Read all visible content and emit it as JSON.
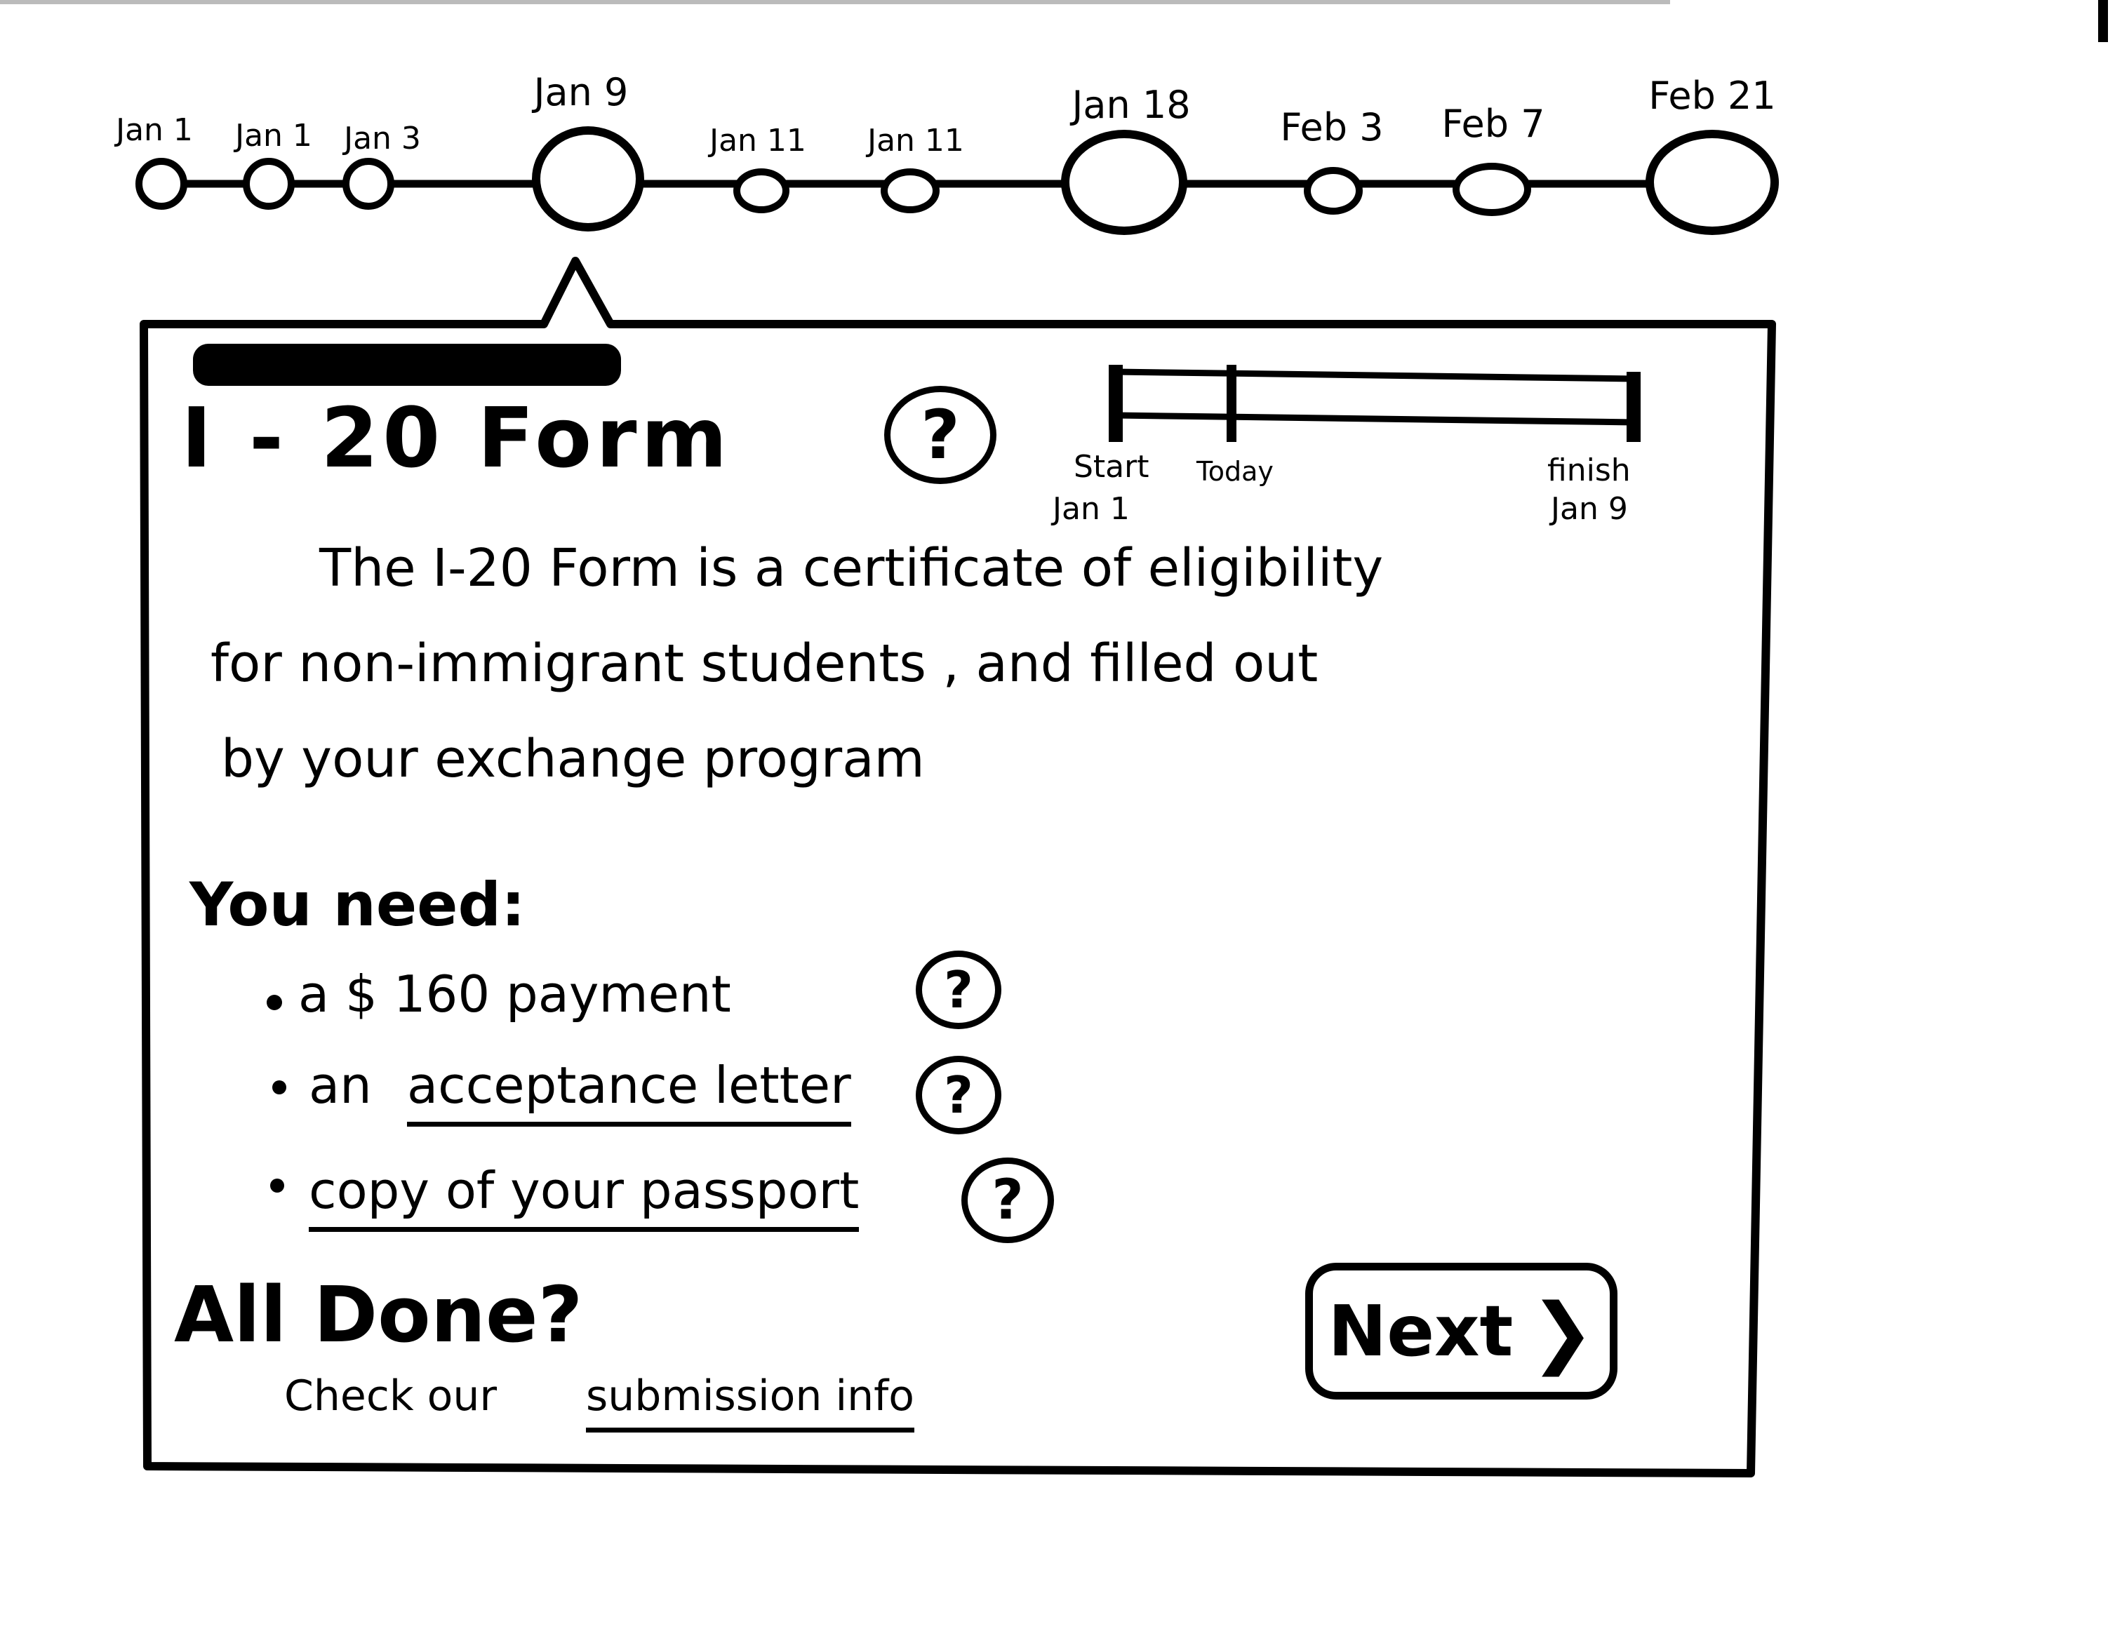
{
  "timeline": {
    "dates": [
      {
        "label": "Jan 1",
        "size": "small"
      },
      {
        "label": "Jan 1",
        "size": "small"
      },
      {
        "label": "Jan 3",
        "size": "small"
      },
      {
        "label": "Jan 9",
        "size": "large",
        "selected": true
      },
      {
        "label": "Jan 11",
        "size": "small"
      },
      {
        "label": "Jan 11",
        "size": "small"
      },
      {
        "label": "Jan 18",
        "size": "large"
      },
      {
        "label": "Feb 3",
        "size": "small"
      },
      {
        "label": "Feb 7",
        "size": "small"
      },
      {
        "label": "Feb 21",
        "size": "large"
      }
    ]
  },
  "card": {
    "title": "I - 20  Form",
    "help_icon": "question-mark",
    "progress": {
      "start_label": "Start",
      "start_date": "Jan 1",
      "today_label": "Today",
      "finish_label": "finish",
      "finish_date": "Jan 9"
    },
    "description_lines": [
      "The  I-20  Form  is  a  certificate  of  eligibility",
      "for  non-immigrant  students ,  and  filled  out",
      "by  your  exchange  program"
    ],
    "needs_title": "You need:",
    "needs": [
      {
        "text": "a $ 160 payment",
        "link": false
      },
      {
        "prefix": "an ",
        "text": "acceptance letter",
        "link": true
      },
      {
        "text": "copy of your passport",
        "link": true
      }
    ],
    "done_title": "All Done?",
    "done_prefix": "Check our",
    "done_link": "submission info",
    "next_label": "Next",
    "next_icon": "chevron-right"
  }
}
